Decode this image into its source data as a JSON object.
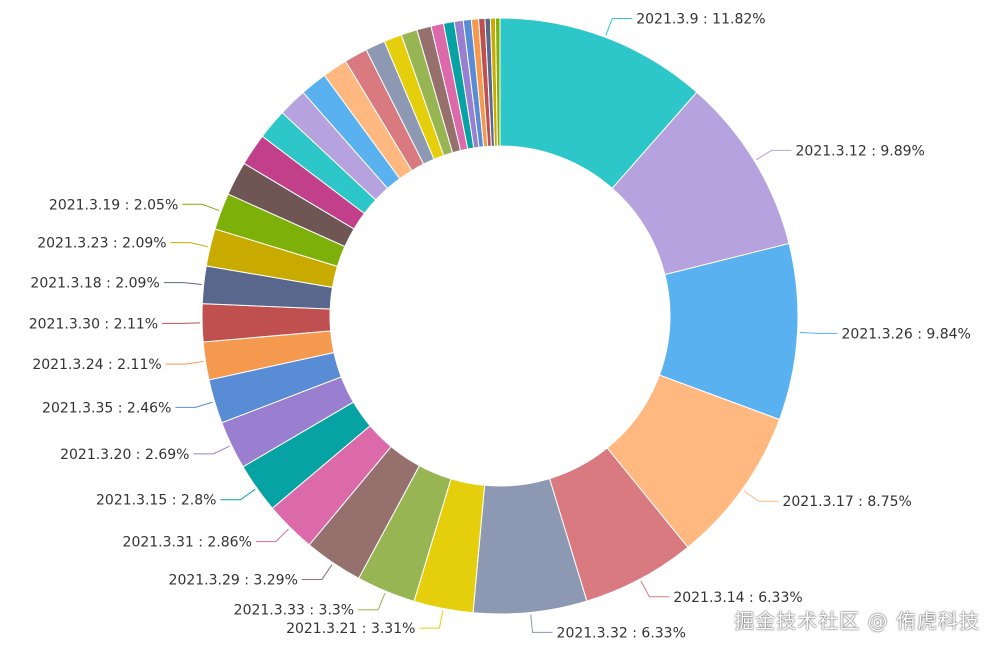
{
  "chart_data": {
    "type": "pie",
    "style": "donut",
    "total_visible_percent_note": "",
    "slices": [
      {
        "label": "2021.3.9",
        "value": 11.82,
        "color": "#2ec7c9",
        "show_label": true
      },
      {
        "label": "2021.3.12",
        "value": 9.89,
        "color": "#b6a2de",
        "show_label": true
      },
      {
        "label": "2021.3.26",
        "value": 9.84,
        "color": "#5ab1ef",
        "show_label": true
      },
      {
        "label": "2021.3.17",
        "value": 8.75,
        "color": "#ffb980",
        "show_label": true
      },
      {
        "label": "2021.3.14",
        "value": 6.33,
        "color": "#d87a80",
        "show_label": true
      },
      {
        "label": "2021.3.32",
        "value": 6.33,
        "color": "#8d98b3",
        "show_label": true
      },
      {
        "label": "2021.3.21",
        "value": 3.31,
        "color": "#e5cf0d",
        "show_label": true
      },
      {
        "label": "2021.3.33",
        "value": 3.3,
        "color": "#97b552",
        "show_label": true
      },
      {
        "label": "2021.3.29",
        "value": 3.29,
        "color": "#95706d",
        "show_label": true
      },
      {
        "label": "2021.3.31",
        "value": 2.86,
        "color": "#dc69aa",
        "show_label": true
      },
      {
        "label": "2021.3.15",
        "value": 2.8,
        "color": "#07a2a4",
        "show_label": true
      },
      {
        "label": "2021.3.20",
        "value": 2.69,
        "color": "#9a7fd1",
        "show_label": true
      },
      {
        "label": "2021.3.35",
        "value": 2.46,
        "color": "#588dd5",
        "show_label": true
      },
      {
        "label": "2021.3.24",
        "value": 2.11,
        "color": "#f5994e",
        "show_label": true
      },
      {
        "label": "2021.3.30",
        "value": 2.11,
        "color": "#c05050",
        "show_label": true
      },
      {
        "label": "2021.3.18",
        "value": 2.09,
        "color": "#59678c",
        "show_label": true
      },
      {
        "label": "2021.3.23",
        "value": 2.09,
        "color": "#c9ab00",
        "show_label": true
      },
      {
        "label": "2021.3.19",
        "value": 2.05,
        "color": "#7eb00a",
        "show_label": true
      },
      {
        "label": "",
        "value": 1.9,
        "color": "#6f5553",
        "show_label": false
      },
      {
        "label": "",
        "value": 1.8,
        "color": "#c14089",
        "show_label": false
      },
      {
        "label": "",
        "value": 1.7,
        "color": "#2ec7c9",
        "show_label": false
      },
      {
        "label": "",
        "value": 1.6,
        "color": "#b6a2de",
        "show_label": false
      },
      {
        "label": "",
        "value": 1.5,
        "color": "#5ab1ef",
        "show_label": false
      },
      {
        "label": "",
        "value": 1.4,
        "color": "#ffb980",
        "show_label": false
      },
      {
        "label": "",
        "value": 1.3,
        "color": "#d87a80",
        "show_label": false
      },
      {
        "label": "",
        "value": 1.1,
        "color": "#8d98b3",
        "show_label": false
      },
      {
        "label": "",
        "value": 1.0,
        "color": "#e5cf0d",
        "show_label": false
      },
      {
        "label": "",
        "value": 0.9,
        "color": "#97b552",
        "show_label": false
      },
      {
        "label": "",
        "value": 0.8,
        "color": "#95706d",
        "show_label": false
      },
      {
        "label": "",
        "value": 0.7,
        "color": "#dc69aa",
        "show_label": false
      },
      {
        "label": "",
        "value": 0.6,
        "color": "#07a2a4",
        "show_label": false
      },
      {
        "label": "",
        "value": 0.5,
        "color": "#9a7fd1",
        "show_label": false
      },
      {
        "label": "",
        "value": 0.45,
        "color": "#588dd5",
        "show_label": false
      },
      {
        "label": "",
        "value": 0.4,
        "color": "#f5994e",
        "show_label": false
      },
      {
        "label": "",
        "value": 0.35,
        "color": "#c05050",
        "show_label": false
      },
      {
        "label": "",
        "value": 0.3,
        "color": "#59678c",
        "show_label": false
      },
      {
        "label": "",
        "value": 0.28,
        "color": "#c9ab00",
        "show_label": false
      },
      {
        "label": "",
        "value": 0.25,
        "color": "#7eb00a",
        "show_label": false
      }
    ]
  },
  "watermark": "掘金技术社区 @ 侑虎科技"
}
